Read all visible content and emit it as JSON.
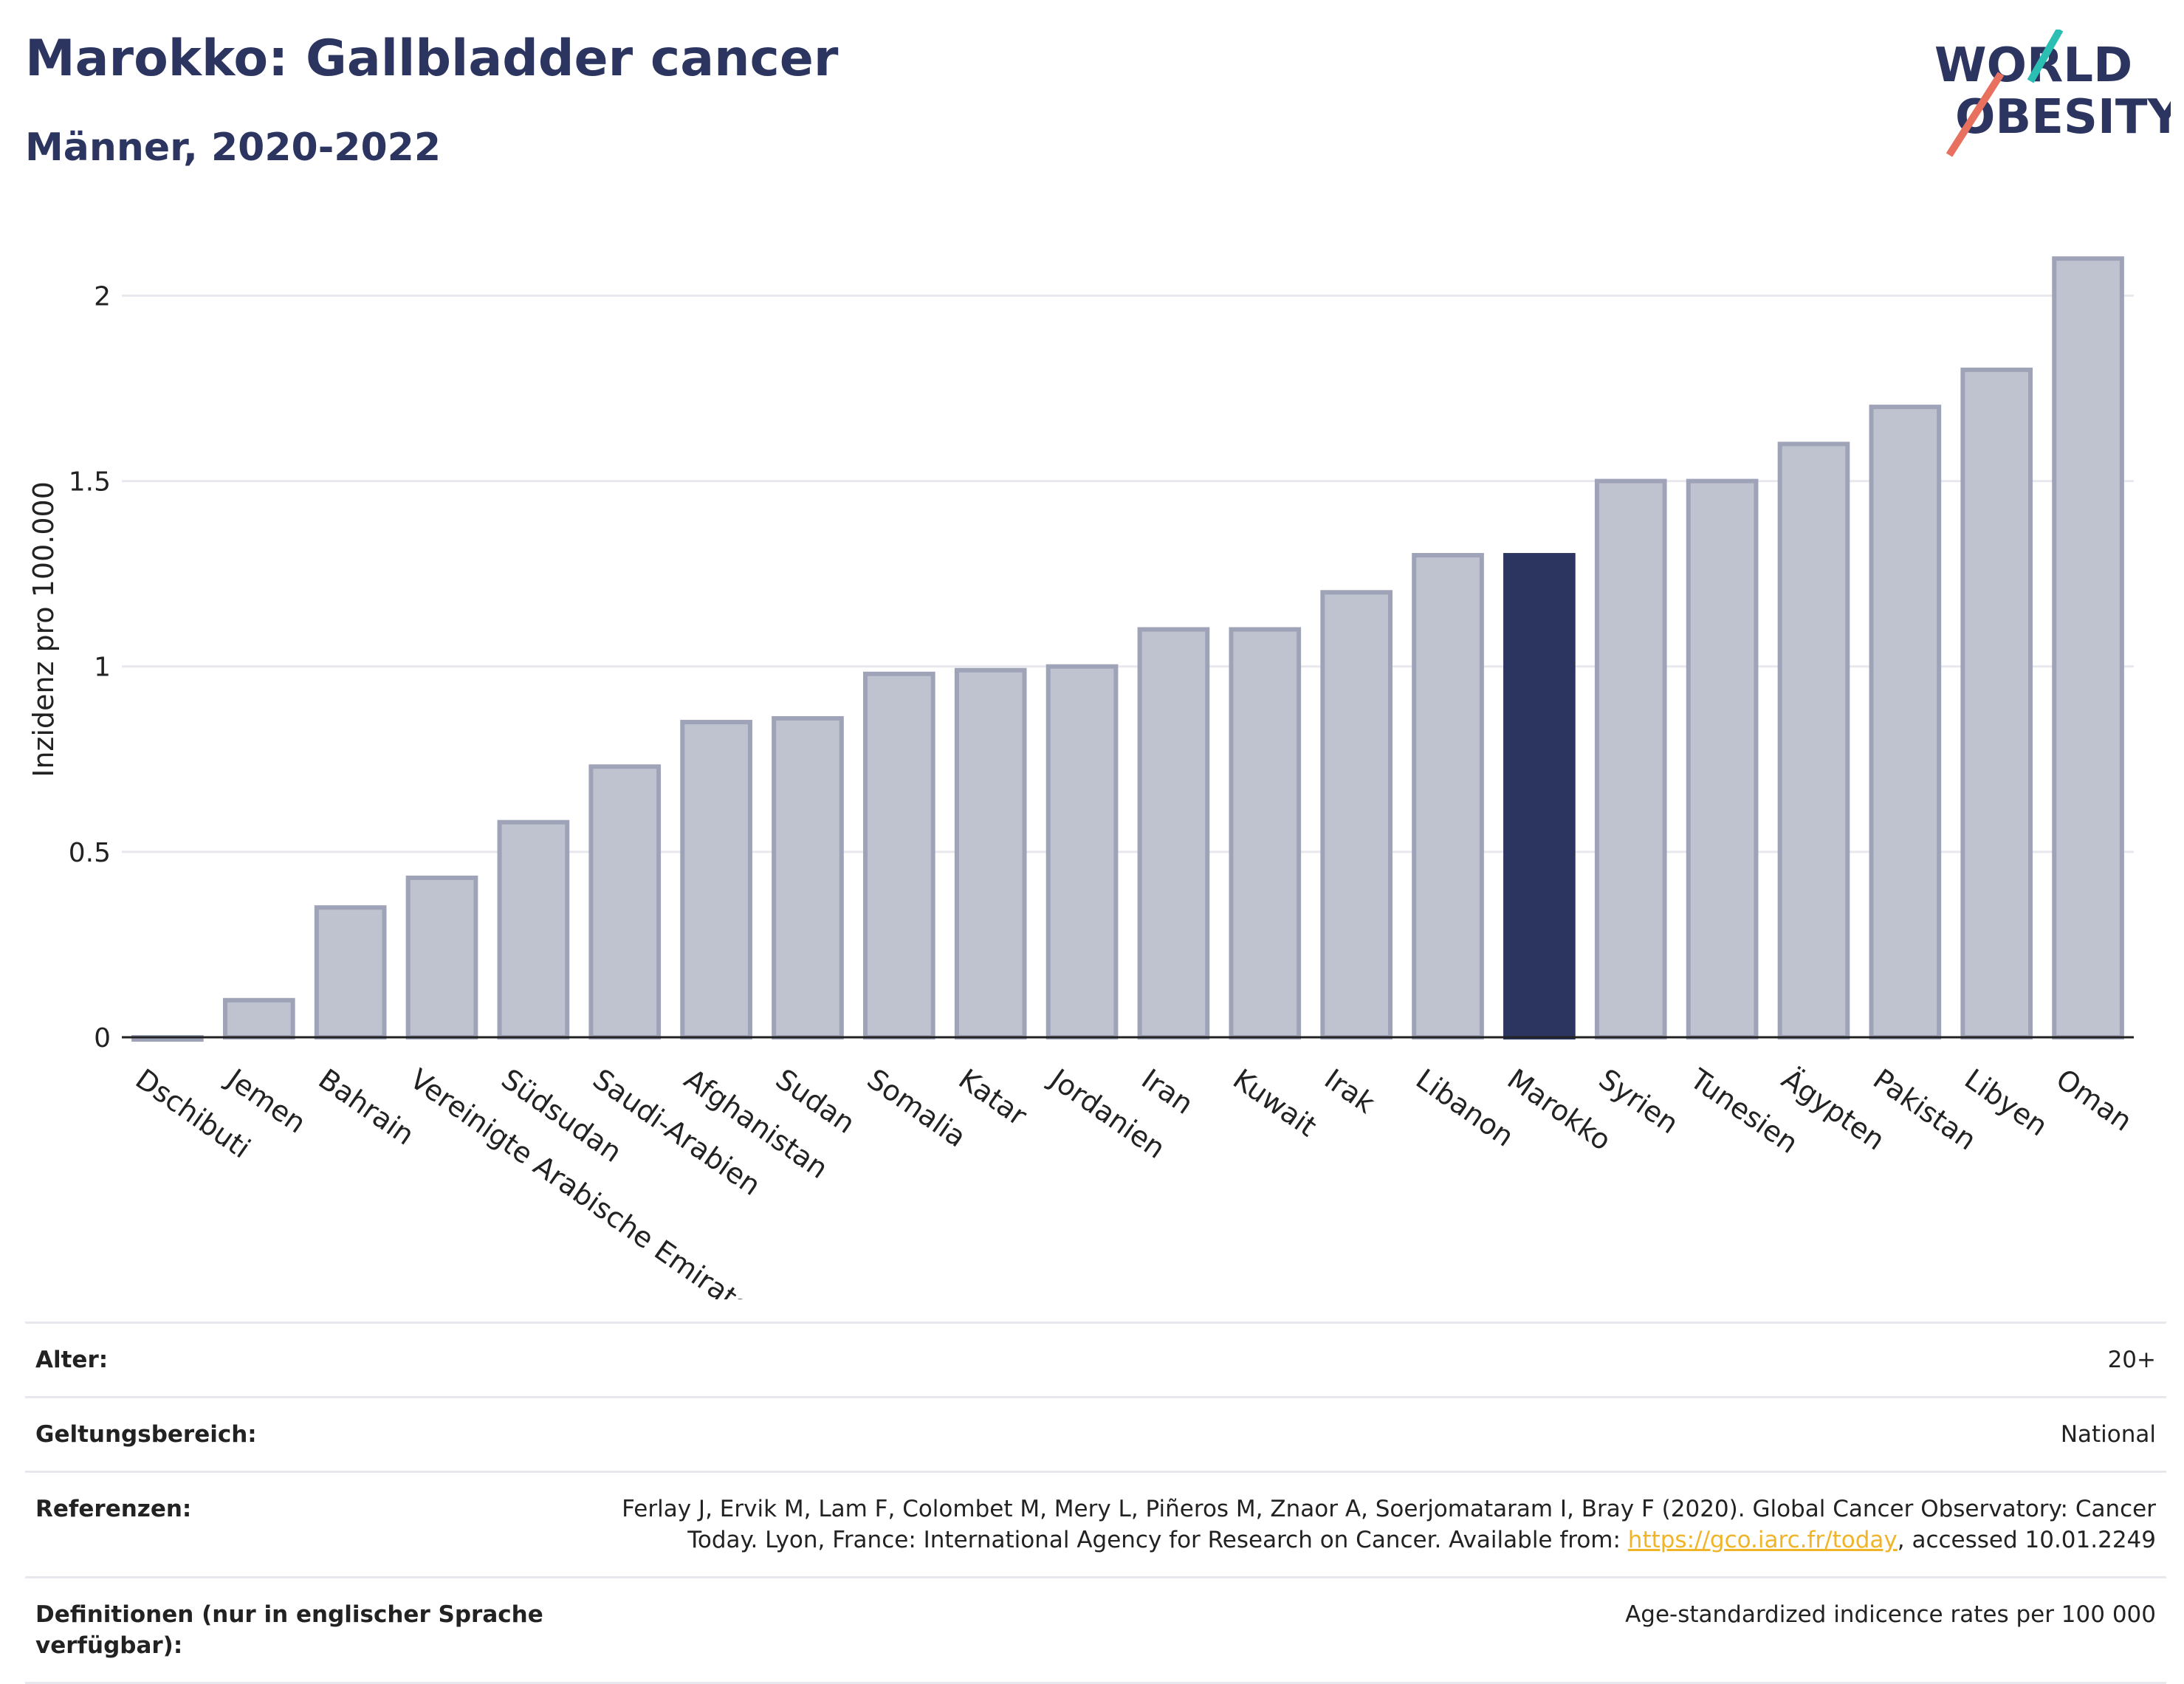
{
  "header": {
    "title": "Marokko: Gallbladder cancer",
    "subtitle": "Männer, 2020-2022"
  },
  "logo": {
    "line1": "WORLD",
    "line2": "OBESITY"
  },
  "chart_data": {
    "type": "bar",
    "ylabel": "Inzidenz pro 100.000",
    "ylim": [
      0,
      2.2
    ],
    "yticks": [
      {
        "value": 0,
        "label": "0"
      },
      {
        "value": 0.5,
        "label": "0.5"
      },
      {
        "value": 1,
        "label": "1"
      },
      {
        "value": 1.5,
        "label": "1.5"
      },
      {
        "value": 2,
        "label": "2"
      }
    ],
    "grid": true,
    "highlight": "Marokko",
    "categories": [
      "Dschibuti",
      "Jemen",
      "Bahrain",
      "Vereinigte Arabische Emirate",
      "Südsudan",
      "Saudi-Arabien",
      "Afghanistan",
      "Sudan",
      "Somalia",
      "Katar",
      "Jordanien",
      "Iran",
      "Kuwait",
      "Irak",
      "Libanon",
      "Marokko",
      "Syrien",
      "Tunesien",
      "Ägypten",
      "Pakistan",
      "Libyen",
      "Oman"
    ],
    "values": [
      0.0,
      0.1,
      0.35,
      0.43,
      0.58,
      0.73,
      0.85,
      0.86,
      0.98,
      0.99,
      1.0,
      1.1,
      1.1,
      1.2,
      1.3,
      1.3,
      1.5,
      1.5,
      1.6,
      1.7,
      1.8,
      2.1
    ]
  },
  "colors": {
    "bar": "#bfc2cf",
    "bar_border": "#9fa3b8",
    "highlight": "#2b3560",
    "title": "#2b3560",
    "logo_teal": "#2bbfb3",
    "logo_red": "#e8705f"
  },
  "meta": {
    "age_label": "Alter:",
    "age_value": "20+",
    "scope_label": "Geltungsbereich:",
    "scope_value": "National",
    "ref_label": "Referenzen:",
    "ref_text_1": "Ferlay J, Ervik M, Lam F, Colombet M, Mery L, Piñeros M, Znaor A, Soerjomataram I, Bray F (2020). Global Cancer Observatory: Cancer Today. Lyon, France: International Agency for Research on Cancer. Available from: ",
    "ref_link": "https://gco.iarc.fr/today",
    "ref_text_2": ", accessed 10.01.2249",
    "def_label": "Definitionen (nur in englischer Sprache verfügbar):",
    "def_value": "Age-standardized indicence rates per 100 000"
  }
}
